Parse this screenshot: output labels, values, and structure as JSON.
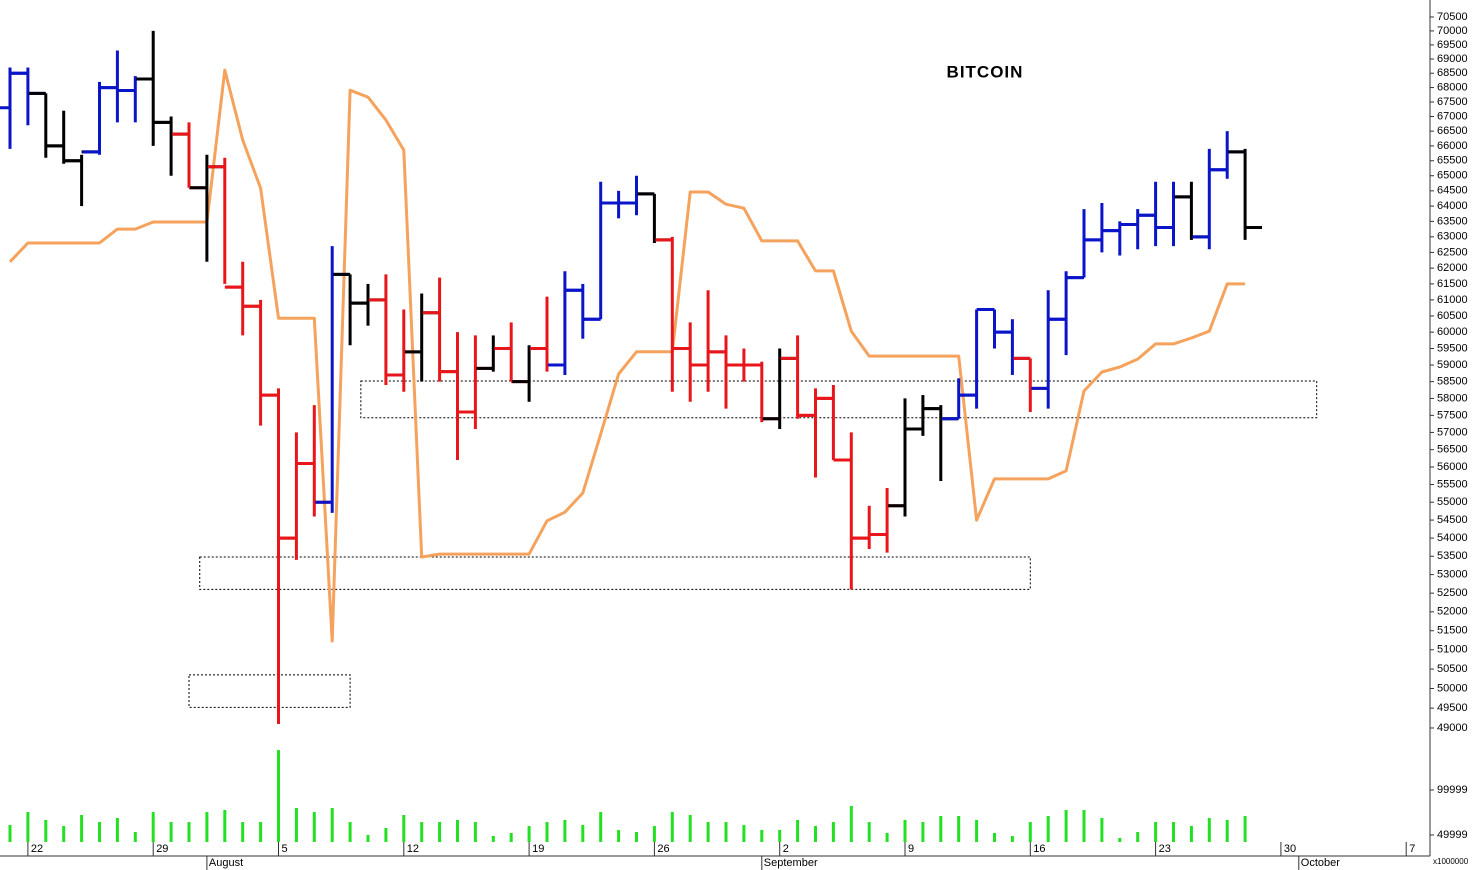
{
  "chart_data": {
    "type": "ohlc",
    "title": "BITCOIN",
    "categories": [
      null,
      "22",
      null,
      null,
      null,
      null,
      null,
      null,
      "29",
      null,
      null,
      null,
      null,
      null,
      null,
      "5",
      null,
      null,
      null,
      null,
      null,
      null,
      "12",
      null,
      null,
      null,
      null,
      null,
      null,
      "19",
      null,
      null,
      null,
      null,
      null,
      null,
      "26",
      null,
      null,
      null,
      null,
      null,
      null,
      "2",
      null,
      null,
      null,
      null,
      null,
      null,
      "9",
      null,
      null,
      null,
      null,
      null,
      null,
      "16",
      null,
      null,
      null,
      null,
      null,
      null,
      "23",
      null,
      null,
      null,
      null,
      null,
      null,
      "30",
      null,
      null,
      null,
      null,
      null,
      null,
      "7"
    ],
    "month_labels": [
      null,
      null,
      null,
      null,
      null,
      null,
      null,
      null,
      null,
      null,
      null,
      "August",
      null,
      null,
      null,
      null,
      null,
      null,
      null,
      null,
      null,
      null,
      null,
      null,
      null,
      null,
      null,
      null,
      null,
      null,
      null,
      null,
      null,
      null,
      null,
      null,
      null,
      null,
      null,
      null,
      null,
      null,
      "September",
      null,
      null,
      null,
      null,
      null,
      null,
      null,
      null,
      null,
      null,
      null,
      null,
      null,
      null,
      null,
      null,
      null,
      null,
      null,
      null,
      null,
      null,
      null,
      null,
      null,
      null,
      null,
      null,
      null,
      "October",
      null,
      null,
      null,
      null,
      null,
      null
    ],
    "open": [
      67300,
      68500,
      67800,
      66000,
      65500,
      65800,
      68000,
      67900,
      68300,
      66800,
      66400,
      64600,
      65300,
      61400,
      60800,
      58100,
      54000,
      56100,
      55000,
      61800,
      60900,
      61000,
      58700,
      59400,
      60600,
      58800,
      57600,
      58900,
      59500,
      58500,
      59500,
      59000,
      61300,
      60400,
      64100,
      64100,
      64400,
      62900,
      59500,
      59000,
      59400,
      59000,
      59000,
      57400,
      59200,
      57500,
      58000,
      56200,
      54000,
      54100,
      54900,
      57100,
      57700,
      57400,
      58100,
      60700,
      60000,
      59200,
      58300,
      60400,
      61700,
      62900,
      63200,
      63400,
      63700,
      63300,
      64300,
      63000,
      65200,
      65800,
      null,
      null,
      null,
      null,
      null,
      null,
      null,
      null,
      null
    ],
    "high": [
      68700,
      68700,
      67800,
      67200,
      65700,
      68200,
      69300,
      68400,
      70000,
      67000,
      66800,
      65700,
      65600,
      62200,
      61000,
      58300,
      57000,
      57800,
      62700,
      61800,
      61500,
      61800,
      60700,
      61200,
      61700,
      60000,
      59900,
      59900,
      60300,
      59600,
      61100,
      61900,
      61500,
      64800,
      64500,
      65000,
      64400,
      63000,
      60300,
      61300,
      59900,
      59500,
      59100,
      59500,
      59900,
      58300,
      58400,
      57000,
      54900,
      55400,
      58000,
      58100,
      57800,
      58600,
      60700,
      60700,
      60400,
      59200,
      61300,
      61900,
      63900,
      64100,
      63500,
      63900,
      64800,
      64800,
      64800,
      65900,
      66500,
      65900,
      null,
      null,
      null,
      null,
      null,
      null,
      null,
      null,
      null
    ],
    "low": [
      65900,
      66700,
      65600,
      65400,
      64000,
      65700,
      66800,
      66800,
      66000,
      65000,
      64600,
      62200,
      61500,
      59900,
      57200,
      49100,
      53400,
      54600,
      54700,
      59600,
      60200,
      58400,
      58200,
      58500,
      58500,
      56200,
      57100,
      58800,
      58500,
      57900,
      58800,
      58700,
      59800,
      60400,
      63600,
      63700,
      62800,
      58200,
      57900,
      58200,
      57700,
      58500,
      57300,
      57100,
      57400,
      55700,
      56200,
      52600,
      53700,
      53600,
      54600,
      56900,
      55600,
      57400,
      57700,
      59500,
      58700,
      57600,
      57700,
      59300,
      61700,
      62500,
      62400,
      62600,
      62700,
      62700,
      62900,
      62600,
      64900,
      62900,
      null,
      null,
      null,
      null,
      null,
      null,
      null,
      null,
      null
    ],
    "close": [
      68500,
      67800,
      66000,
      65500,
      65800,
      68000,
      67900,
      68300,
      66800,
      66400,
      64600,
      65300,
      61400,
      60800,
      58100,
      54000,
      56100,
      55000,
      61800,
      60900,
      61000,
      58700,
      59400,
      60600,
      58800,
      57600,
      58900,
      59500,
      58500,
      59500,
      59000,
      61300,
      60400,
      64100,
      64100,
      64400,
      62900,
      59500,
      59000,
      59400,
      59000,
      59000,
      57400,
      59200,
      57500,
      58000,
      56200,
      54000,
      54100,
      54900,
      57100,
      57700,
      57400,
      58100,
      60700,
      60000,
      59200,
      58300,
      60400,
      61700,
      62900,
      63200,
      63400,
      63700,
      63300,
      64300,
      63000,
      65200,
      65800,
      63300,
      null,
      null,
      null,
      null,
      null,
      null,
      null,
      null,
      null
    ],
    "bar_colors": [
      "#0a14c8",
      "#0a14c8",
      "#000000",
      "#000000",
      "#000000",
      "#0a14c8",
      "#0a14c8",
      "#0a14c8",
      "#000000",
      "#000000",
      "#e8161a",
      "#000000",
      "#e8161a",
      "#e8161a",
      "#e8161a",
      "#e8161a",
      "#e8161a",
      "#e8161a",
      "#0a14c8",
      "#000000",
      "#000000",
      "#e8161a",
      "#e8161a",
      "#000000",
      "#e8161a",
      "#e8161a",
      "#e8161a",
      "#000000",
      "#e8161a",
      "#000000",
      "#e8161a",
      "#0a14c8",
      "#0a14c8",
      "#0a14c8",
      "#0a14c8",
      "#0a14c8",
      "#000000",
      "#e8161a",
      "#e8161a",
      "#e8161a",
      "#e8161a",
      "#e8161a",
      "#e8161a",
      "#000000",
      "#e8161a",
      "#e8161a",
      "#e8161a",
      "#e8161a",
      "#e8161a",
      "#e8161a",
      "#000000",
      "#000000",
      "#000000",
      "#0a14c8",
      "#0a14c8",
      "#0a14c8",
      "#0a14c8",
      "#e8161a",
      "#0a14c8",
      "#0a14c8",
      "#0a14c8",
      "#0a14c8",
      "#0a14c8",
      "#0a14c8",
      "#0a14c8",
      "#0a14c8",
      "#000000",
      "#0a14c8",
      "#0a14c8",
      "#000000",
      null,
      null,
      null,
      null,
      null,
      null,
      null,
      null,
      null
    ],
    "line": {
      "color": "#f5a25d",
      "values": [
        62200,
        62800,
        62800,
        62800,
        62800,
        62800,
        63250,
        63250,
        63480,
        63480,
        63480,
        63480,
        68610,
        66200,
        64590,
        60430,
        60430,
        60430,
        51230,
        67910,
        67670,
        66880,
        65860,
        53480,
        53560,
        53560,
        53560,
        53560,
        53560,
        53560,
        54480,
        54720,
        55260,
        56950,
        58730,
        59400,
        59400,
        59400,
        64460,
        64460,
        64060,
        63930,
        62870,
        62870,
        62870,
        61910,
        61910,
        60030,
        59270,
        59270,
        59270,
        59270,
        59270,
        59270,
        54500,
        55660,
        55660,
        55660,
        55660,
        55890,
        58220,
        58790,
        58940,
        59180,
        59640,
        59640,
        59820,
        60030,
        61500,
        61500,
        null,
        null,
        null,
        null,
        null,
        null,
        null,
        null,
        null
      ]
    },
    "zones": [
      {
        "ylim": [
          57430,
          58520
        ],
        "xlim": [
          19.6,
          73
        ]
      },
      {
        "ylim": [
          52600,
          53480
        ],
        "xlim": [
          10.6,
          57
        ]
      },
      {
        "ylim": [
          49520,
          50350
        ],
        "xlim": [
          10,
          19
        ]
      }
    ],
    "log_scale": true,
    "ylim": [
      48575,
      71116
    ],
    "yticks": [
      49000,
      49500,
      50000,
      50500,
      51000,
      51500,
      52000,
      52500,
      53000,
      53500,
      54000,
      54500,
      55000,
      55500,
      56000,
      56500,
      57000,
      57500,
      58000,
      58500,
      59000,
      59500,
      60000,
      60500,
      61000,
      61500,
      62000,
      62500,
      63000,
      63500,
      64000,
      64500,
      65000,
      65500,
      66000,
      66500,
      67000,
      67500,
      68000,
      68500,
      69000,
      69500,
      70000,
      70500
    ],
    "volume": {
      "color": "#22e022",
      "values": [
        61100,
        75500,
        66700,
        60000,
        72200,
        64400,
        68900,
        53300,
        75500,
        64400,
        64400,
        75500,
        77800,
        64400,
        64400,
        144400,
        80000,
        75500,
        80000,
        64400,
        50000,
        57800,
        72200,
        64400,
        64400,
        66700,
        64400,
        48900,
        52200,
        60000,
        64400,
        66700,
        61100,
        75500,
        55600,
        53300,
        60000,
        75500,
        72200,
        64400,
        64400,
        61100,
        55600,
        55600,
        66700,
        60000,
        64400,
        82200,
        64400,
        52200,
        66700,
        64400,
        71100,
        71100,
        66700,
        52200,
        48900,
        64400,
        71100,
        77800,
        77800,
        68900,
        46700,
        53300,
        64400,
        64400,
        60000,
        68900,
        66700,
        71100,
        null,
        null,
        null,
        null,
        null,
        null,
        null,
        null,
        null
      ],
      "ylim": [
        42200,
        146700
      ],
      "yticks": [
        49999,
        99999
      ],
      "unit_label": "x1000000"
    }
  }
}
